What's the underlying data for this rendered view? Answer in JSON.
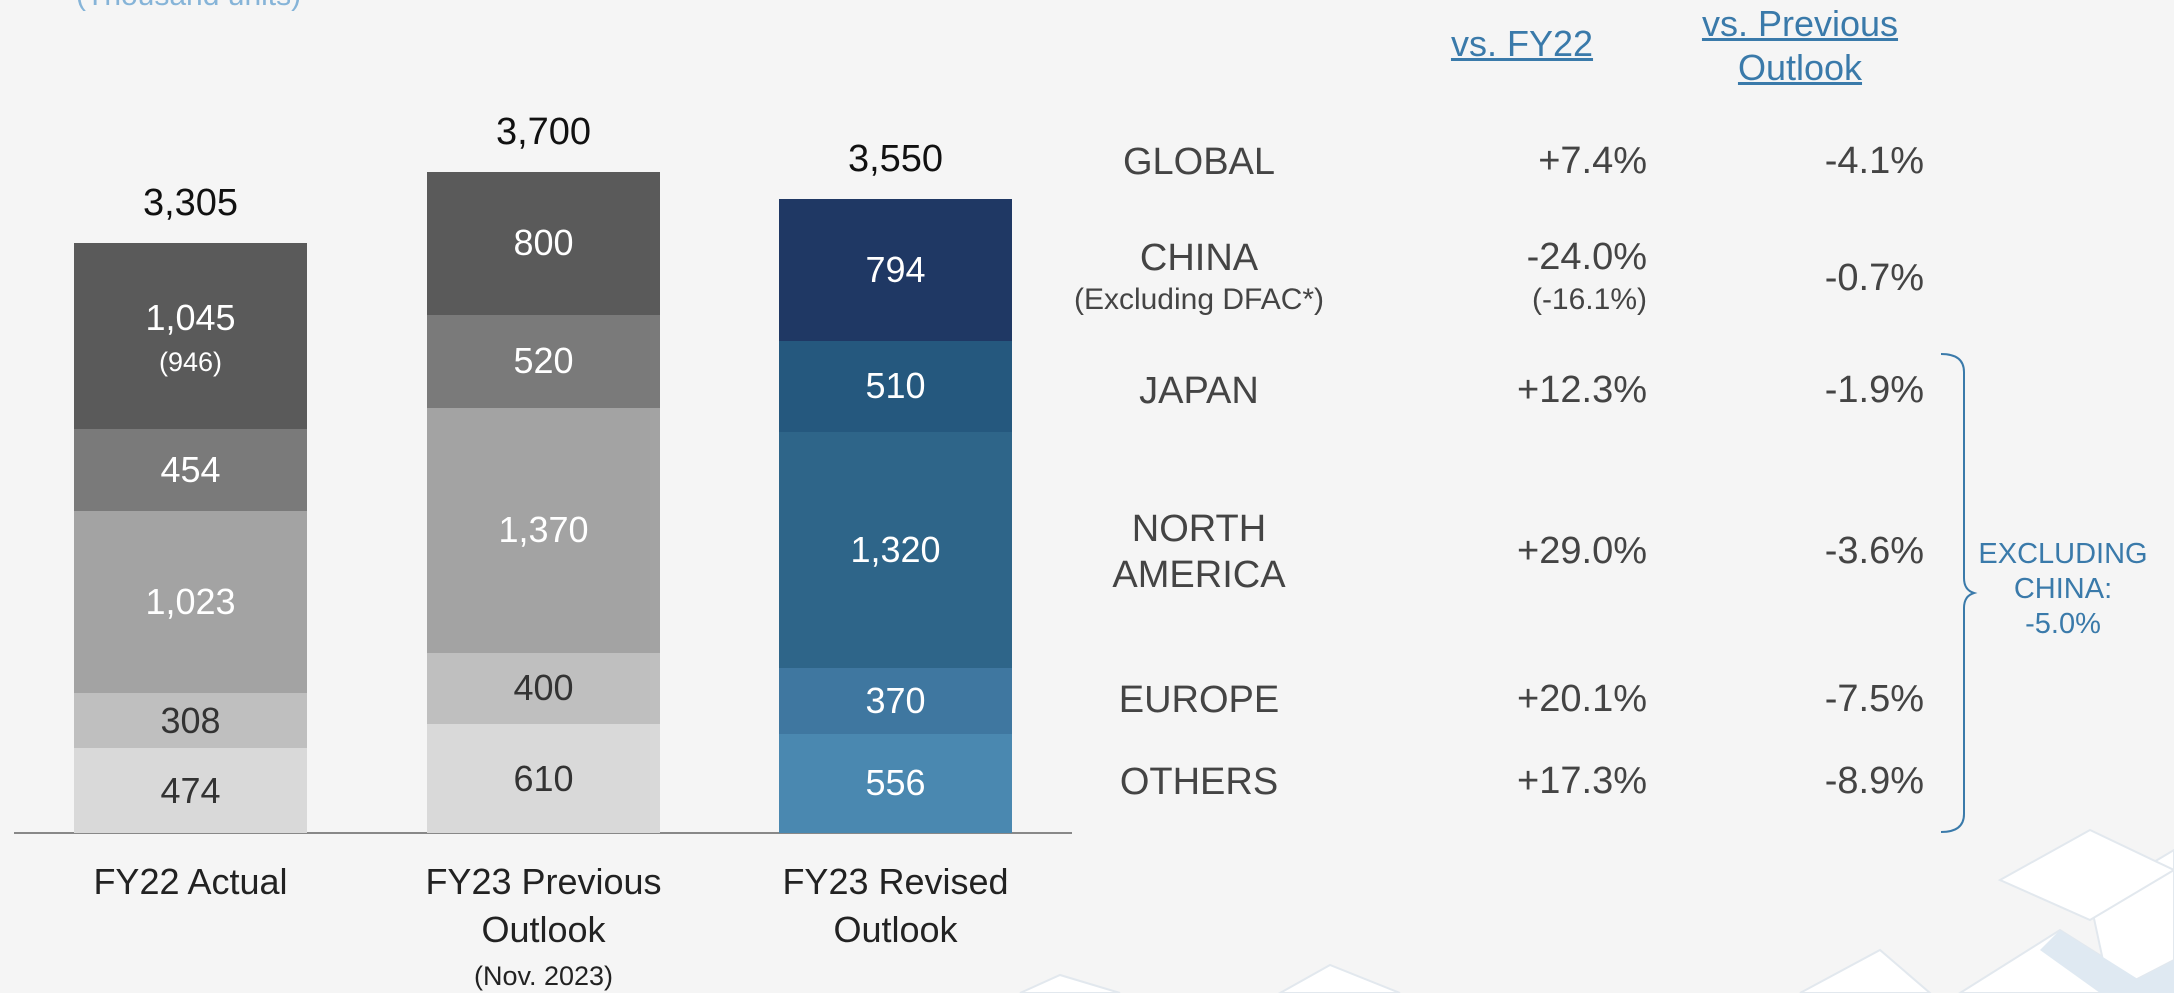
{
  "unit_note": "(Thousand units)",
  "chart_data": {
    "type": "stacked_bar",
    "categories": [
      "FY22 Actual",
      "FY23 Previous Outlook",
      "FY23 Revised Outlook"
    ],
    "category_note": "(Nov. 2023)",
    "series": [
      {
        "values": [
          474,
          610,
          556
        ],
        "colors": [
          "#d9d9d9",
          "#d9d9d9",
          "#4a88b0"
        ]
      },
      {
        "values": [
          308,
          400,
          370
        ],
        "colors": [
          "#bfbfbf",
          "#bfbfbf",
          "#3f77a0"
        ]
      },
      {
        "values": [
          1023,
          1370,
          1320
        ],
        "value_labels": [
          "1,023",
          "1,370",
          "1,320"
        ],
        "colors": [
          "#a3a3a3",
          "#a3a3a3",
          "#2e6589"
        ]
      },
      {
        "values": [
          454,
          520,
          510
        ],
        "colors": [
          "#7a7a7a",
          "#7a7a7a",
          "#25587e"
        ]
      },
      {
        "values": [
          1045,
          800,
          794
        ],
        "value_labels": [
          "1,045",
          "800",
          "794"
        ],
        "note": "(946)",
        "colors": [
          "#5a5a5a",
          "#5a5a5a",
          "#1f3864"
        ]
      }
    ],
    "totals": {
      "values": [
        3305,
        3700,
        3550
      ],
      "value_labels": [
        "3,305",
        "3,700",
        "3,550"
      ]
    }
  },
  "table": {
    "headers": [
      "vs. FY22",
      "vs. Previous Outlook"
    ],
    "rows": [
      {
        "region": "GLOBAL",
        "vs_fy22": "+7.4%",
        "vs_previous": "-4.1%"
      },
      {
        "region": "CHINA",
        "region_note": "(Excluding DFAC*)",
        "vs_fy22": "-24.0%",
        "vs_fy22_note": "(-16.1%)",
        "vs_previous": "-0.7%"
      },
      {
        "region": "JAPAN",
        "vs_fy22": "+12.3%",
        "vs_previous": "-1.9%"
      },
      {
        "region": "NORTH AMERICA",
        "vs_fy22": "+29.0%",
        "vs_previous": "-3.6%"
      },
      {
        "region": "EUROPE",
        "vs_fy22": "+20.1%",
        "vs_previous": "-7.5%"
      },
      {
        "region": "OTHERS",
        "vs_fy22": "+17.3%",
        "vs_previous": "-8.9%"
      }
    ],
    "bracket_label": "EXCLUDING CHINA: -5.0%"
  }
}
